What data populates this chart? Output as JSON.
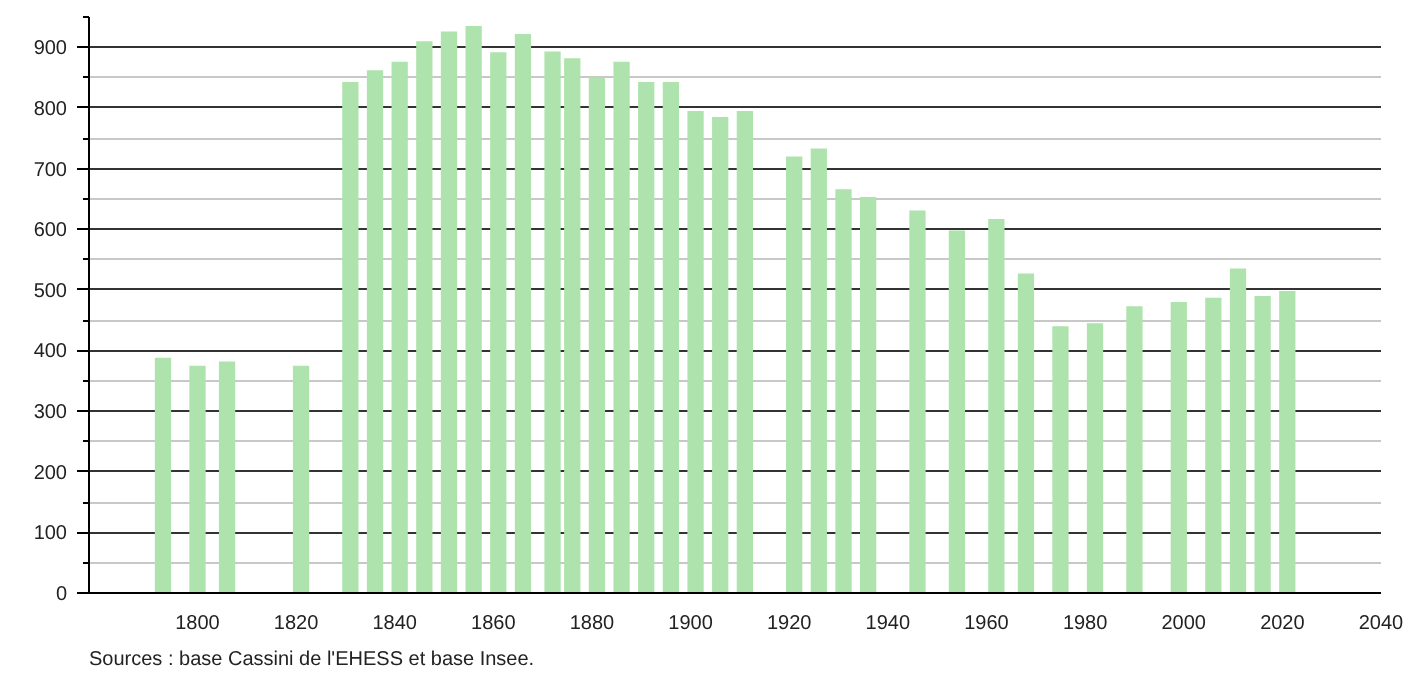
{
  "chart_data": {
    "type": "bar",
    "x": [
      1793,
      1800,
      1806,
      1821,
      1831,
      1836,
      1841,
      1846,
      1851,
      1856,
      1861,
      1866,
      1872,
      1876,
      1881,
      1886,
      1891,
      1896,
      1901,
      1906,
      1911,
      1921,
      1926,
      1931,
      1936,
      1946,
      1954,
      1962,
      1968,
      1975,
      1982,
      1990,
      1999,
      2006,
      2011,
      2016,
      2021
    ],
    "values": [
      388,
      375,
      382,
      375,
      843,
      862,
      876,
      910,
      926,
      935,
      892,
      922,
      893,
      882,
      850,
      876,
      843,
      843,
      795,
      785,
      795,
      720,
      733,
      666,
      653,
      631,
      598,
      617,
      527,
      440,
      445,
      473,
      480,
      487,
      535,
      490,
      498
    ],
    "color": "#aee3ad",
    "xlim": [
      1778,
      2040
    ],
    "xticks": [
      1800,
      1820,
      1840,
      1860,
      1880,
      1900,
      1920,
      1940,
      1960,
      1980,
      2000,
      2020,
      2040
    ],
    "ylim": [
      0,
      950
    ],
    "yticks": [
      0,
      100,
      200,
      300,
      400,
      500,
      600,
      700,
      800,
      900
    ],
    "grid": "y",
    "annotations": [
      "Sources : base Cassini de l'EHESS et base Insee."
    ]
  }
}
